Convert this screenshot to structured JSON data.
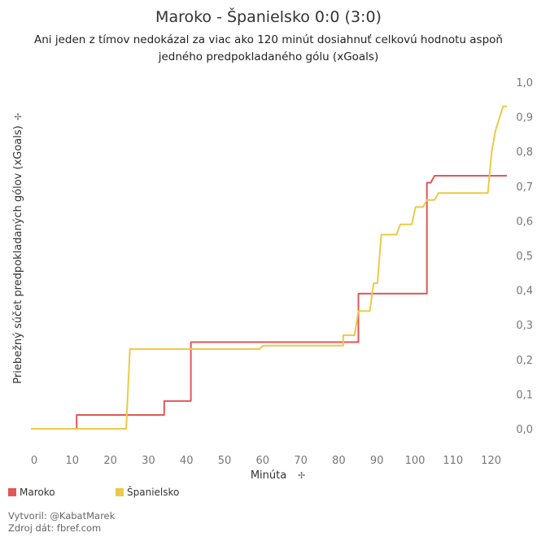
{
  "title": "Maroko - Španielsko 0:0 (3:0)",
  "subtitle_line1": "Ani jeden z tímov nedokázal za viac ako 120 minút dosiahnuť celkovú hodnotu aspoň",
  "subtitle_line2": "jedného predpokladaného gólu (xGoals)",
  "credits": {
    "author": "Vytvoril: @KabatMarek",
    "source": "Zdroj dát: fbref.com"
  },
  "chart_data": {
    "type": "line",
    "step": true,
    "xlabel": "Minúta",
    "ylabel": "Priebežný súčet predpokladaných gólov (xGoals)",
    "xlim": [
      0,
      125
    ],
    "ylim": [
      0,
      1.0
    ],
    "xticks": [
      "0",
      "10",
      "20",
      "30",
      "40",
      "50",
      "60",
      "70",
      "80",
      "90",
      "100",
      "110",
      "120"
    ],
    "yticks": [
      "0,0",
      "0,1",
      "0,2",
      "0,3",
      "0,4",
      "0,5",
      "0,6",
      "0,7",
      "0,8",
      "0,9",
      "1,0"
    ],
    "grid": false,
    "legend_position": "bottom-left",
    "series": [
      {
        "name": "Maroko",
        "color": "#e15759",
        "points": [
          [
            0,
            0.0
          ],
          [
            12,
            0.0
          ],
          [
            12,
            0.04
          ],
          [
            35,
            0.04
          ],
          [
            35,
            0.08
          ],
          [
            42,
            0.08
          ],
          [
            42,
            0.25
          ],
          [
            80,
            0.25
          ],
          [
            86,
            0.25
          ],
          [
            86,
            0.39
          ],
          [
            104,
            0.39
          ],
          [
            104,
            0.71
          ],
          [
            105,
            0.71
          ],
          [
            106,
            0.73
          ],
          [
            125,
            0.73
          ]
        ]
      },
      {
        "name": "Španielsko",
        "color": "#edc948",
        "points": [
          [
            0,
            0.0
          ],
          [
            25,
            0.0
          ],
          [
            26,
            0.23
          ],
          [
            60,
            0.23
          ],
          [
            61,
            0.24
          ],
          [
            82,
            0.24
          ],
          [
            82,
            0.27
          ],
          [
            85,
            0.27
          ],
          [
            86,
            0.34
          ],
          [
            89,
            0.34
          ],
          [
            90,
            0.42
          ],
          [
            91,
            0.42
          ],
          [
            92,
            0.56
          ],
          [
            96,
            0.56
          ],
          [
            97,
            0.59
          ],
          [
            100,
            0.59
          ],
          [
            101,
            0.64
          ],
          [
            103,
            0.64
          ],
          [
            104,
            0.66
          ],
          [
            106,
            0.66
          ],
          [
            107,
            0.68
          ],
          [
            120,
            0.68
          ],
          [
            121,
            0.8
          ],
          [
            122,
            0.86
          ],
          [
            124,
            0.93
          ],
          [
            125,
            0.93
          ]
        ]
      }
    ]
  }
}
